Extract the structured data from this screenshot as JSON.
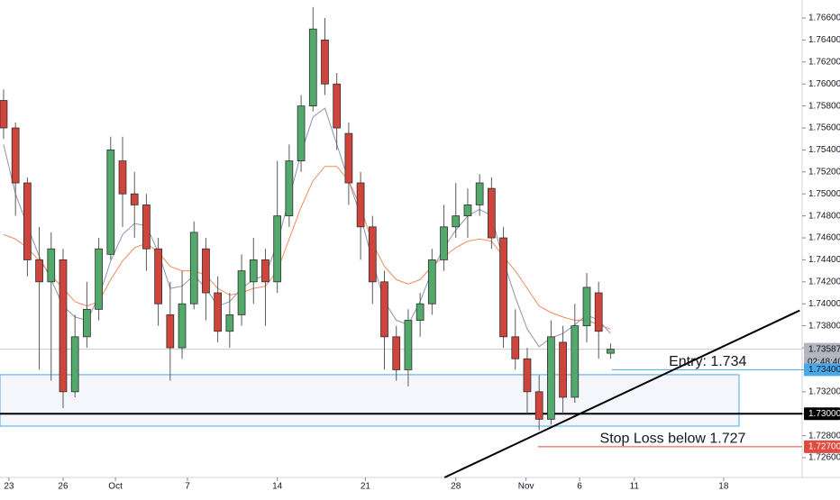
{
  "chart_data": {
    "type": "candlestick",
    "up_color": "#53a86b",
    "down_color": "#d0453b",
    "wick_color": "#5a5a5a",
    "open": [
      1.7585,
      1.756,
      1.751,
      1.744,
      1.742,
      1.744,
      1.732,
      1.737,
      1.7395,
      1.7445,
      1.753,
      1.75,
      1.749,
      1.745,
      1.739,
      1.736,
      1.74,
      1.745,
      1.741,
      1.7375,
      1.739,
      1.742,
      1.744,
      1.742,
      1.748,
      1.753,
      1.758,
      1.764,
      1.76,
      1.7555,
      1.751,
      1.747,
      1.742,
      1.737,
      1.734,
      1.7385,
      1.74,
      1.744,
      1.747,
      1.748,
      1.749,
      1.7505,
      1.746,
      1.737,
      1.735,
      1.732,
      1.7295,
      1.7365,
      1.7315,
      1.738,
      1.741,
      1.7355
    ],
    "high": [
      1.7595,
      1.7565,
      1.7515,
      1.747,
      1.7465,
      1.745,
      1.739,
      1.742,
      1.746,
      1.7552,
      1.7552,
      1.752,
      1.75,
      1.746,
      1.742,
      1.743,
      1.7475,
      1.746,
      1.7425,
      1.741,
      1.7445,
      1.746,
      1.745,
      1.753,
      1.7545,
      1.759,
      1.767,
      1.766,
      1.761,
      1.7565,
      1.752,
      1.748,
      1.743,
      1.738,
      1.7395,
      1.741,
      1.745,
      1.749,
      1.751,
      1.7505,
      1.7518,
      1.7515,
      1.747,
      1.7395,
      1.736,
      1.7335,
      1.7385,
      1.738,
      1.74,
      1.7428,
      1.742,
      1.7364
    ],
    "low": [
      1.755,
      1.748,
      1.7425,
      1.734,
      1.733,
      1.7305,
      1.7315,
      1.736,
      1.7385,
      1.744,
      1.747,
      1.746,
      1.743,
      1.738,
      1.733,
      1.735,
      1.7395,
      1.7385,
      1.7365,
      1.736,
      1.738,
      1.74,
      1.738,
      1.741,
      1.747,
      1.752,
      1.7575,
      1.759,
      1.754,
      1.749,
      1.744,
      1.74,
      1.734,
      1.733,
      1.7325,
      1.737,
      1.739,
      1.743,
      1.746,
      1.746,
      1.748,
      1.745,
      1.736,
      1.734,
      1.73,
      1.7285,
      1.729,
      1.73,
      1.731,
      1.7365,
      1.735,
      1.735
    ],
    "close": [
      1.756,
      1.751,
      1.744,
      1.742,
      1.745,
      1.732,
      1.737,
      1.7395,
      1.745,
      1.754,
      1.75,
      1.749,
      1.745,
      1.74,
      1.736,
      1.74,
      1.7465,
      1.741,
      1.7375,
      1.739,
      1.743,
      1.744,
      1.742,
      1.748,
      1.753,
      1.758,
      1.765,
      1.76,
      1.756,
      1.751,
      1.747,
      1.742,
      1.737,
      1.734,
      1.7385,
      1.74,
      1.744,
      1.747,
      1.748,
      1.749,
      1.751,
      1.746,
      1.737,
      1.735,
      1.732,
      1.7295,
      1.737,
      1.7315,
      1.738,
      1.7415,
      1.7375,
      1.73587
    ],
    "moving_averages": [
      {
        "color": "#8a93b0",
        "values": [
          1.7545,
          1.75,
          1.7471,
          1.7443,
          1.7422,
          1.7398,
          1.7388,
          1.7385,
          1.7406,
          1.7439,
          1.7463,
          1.7473,
          1.7471,
          1.7447,
          1.7414,
          1.7416,
          1.7426,
          1.7414,
          1.7398,
          1.7402,
          1.7414,
          1.7422,
          1.7426,
          1.7455,
          1.7496,
          1.7537,
          1.757,
          1.7578,
          1.7545,
          1.7512,
          1.748,
          1.7439,
          1.7402,
          1.7385,
          1.7381,
          1.7402,
          1.743,
          1.7451,
          1.7467,
          1.748,
          1.7486,
          1.748,
          1.7439,
          1.7406,
          1.7377,
          1.7361,
          1.7369,
          1.7373,
          1.7381,
          1.739,
          1.7385,
          1.7373
        ]
      },
      {
        "color": "#f08a5d",
        "values": [
          1.7463,
          1.7459,
          1.7451,
          1.7439,
          1.7426,
          1.7414,
          1.7402,
          1.7398,
          1.7402,
          1.7422,
          1.7439,
          1.7451,
          1.7455,
          1.7447,
          1.7434,
          1.743,
          1.743,
          1.7426,
          1.7414,
          1.7408,
          1.741,
          1.7414,
          1.7416,
          1.743,
          1.7459,
          1.7488,
          1.7512,
          1.7525,
          1.7525,
          1.7512,
          1.7488,
          1.7455,
          1.7434,
          1.7422,
          1.7418,
          1.7422,
          1.7434,
          1.7443,
          1.7451,
          1.7457,
          1.7459,
          1.7457,
          1.7443,
          1.743,
          1.7414,
          1.7398,
          1.7392,
          1.7388,
          1.7385,
          1.7385,
          1.7381,
          1.7377
        ]
      }
    ],
    "xlim": [
      -0.3,
      67.1
    ],
    "ylim": [
      1.7242,
      1.76764
    ],
    "xticks": [
      {
        "value": 0.45,
        "label": "23"
      },
      {
        "value": 5,
        "label": "26"
      },
      {
        "value": 9.4,
        "label": "Oct"
      },
      {
        "value": 15.45,
        "label": "7"
      },
      {
        "value": 23,
        "label": "14"
      },
      {
        "value": 30.4,
        "label": "21"
      },
      {
        "value": 38,
        "label": "28"
      },
      {
        "value": 43.9,
        "label": "Nov"
      },
      {
        "value": 48.4,
        "label": "6"
      },
      {
        "value": 53,
        "label": "11"
      },
      {
        "value": 60.5,
        "label": "18"
      }
    ],
    "yticks": [
      {
        "value": 1.726,
        "label": "1.72600"
      },
      {
        "value": 1.728,
        "label": "1.72800"
      },
      {
        "value": 1.73,
        "label": "1.73000"
      },
      {
        "value": 1.732,
        "label": "1.73200"
      },
      {
        "value": 1.734,
        "label": "1.73400"
      },
      {
        "value": 1.736,
        "label": "1.73600"
      },
      {
        "value": 1.738,
        "label": "1.73800"
      },
      {
        "value": 1.74,
        "label": "1.74000"
      },
      {
        "value": 1.742,
        "label": "1.74200"
      },
      {
        "value": 1.744,
        "label": "1.74400"
      },
      {
        "value": 1.746,
        "label": "1.74600"
      },
      {
        "value": 1.748,
        "label": "1.74800"
      },
      {
        "value": 1.75,
        "label": "1.75000"
      },
      {
        "value": 1.752,
        "label": "1.75200"
      },
      {
        "value": 1.754,
        "label": "1.75400"
      },
      {
        "value": 1.756,
        "label": "1.75600"
      },
      {
        "value": 1.758,
        "label": "1.75800"
      },
      {
        "value": 1.76,
        "label": "1.76000"
      },
      {
        "value": 1.762,
        "label": "1.76200"
      },
      {
        "value": 1.764,
        "label": "1.76400"
      },
      {
        "value": 1.766,
        "label": "1.76600"
      }
    ],
    "zone": {
      "x": [
        -0.3,
        61.8
      ],
      "y": [
        1.72887,
        1.73355
      ],
      "color": "#7b7fd4"
    },
    "trendline": {
      "x": [
        37.05,
        66.9
      ],
      "y": [
        1.7242,
        1.7394
      ],
      "color": "#000000"
    },
    "levels": [
      {
        "value": 1.73587,
        "label": "1.73587",
        "color": "#b2b5be",
        "text_color": "#131722",
        "start": -0.3
      },
      {
        "value": 1.734,
        "label": "1.73400",
        "color": "#4aa8e8",
        "text_color": "#131722",
        "start": 51.1
      },
      {
        "value": 1.73,
        "label": "1.73000",
        "color": "#000000",
        "text_color": "#ffffff",
        "start": -0.3
      },
      {
        "value": 1.727,
        "label": "1.72700",
        "color": "#e04a3f",
        "text_color": "#ffffff",
        "start": 44.9
      }
    ],
    "countdown": "02:48:40",
    "annotations": [
      {
        "text": "Entry: 1.734",
        "x": 55.9,
        "y": 1.7347
      },
      {
        "text": "Stop Loss below 1.727",
        "x": 50.1,
        "y": 1.7277
      }
    ]
  }
}
